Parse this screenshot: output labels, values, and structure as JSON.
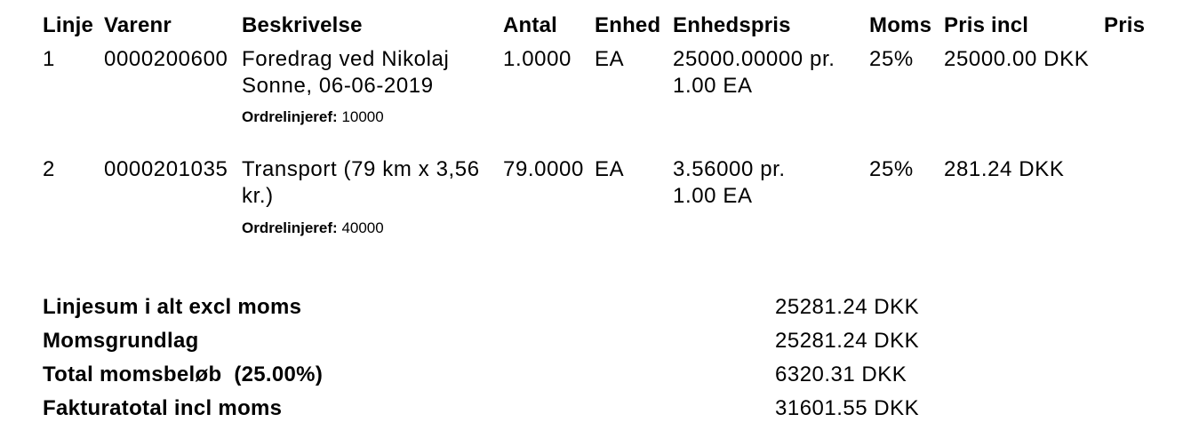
{
  "headers": [
    "Linje",
    "Varenr",
    "Beskrivelse",
    "Antal",
    "Enhed",
    "Enhedspris",
    "Moms",
    "Pris incl",
    "Pris"
  ],
  "lines": [
    {
      "linje": "1",
      "varenr": "0000200600",
      "beskrivelse": "Foredrag ved Nikolaj Sonne, 06-06-2019",
      "ref_label": "Ordrelinjeref:",
      "ref_value": "10000",
      "antal": "1.0000",
      "enhed": "EA",
      "enhedspris": "25000.00000 pr. 1.00 EA",
      "moms": "25%",
      "pris_incl": "25000.00 DKK",
      "pris": ""
    },
    {
      "linje": "2",
      "varenr": "0000201035",
      "beskrivelse": "Transport (79 km x 3,56 kr.)",
      "ref_label": "Ordrelinjeref:",
      "ref_value": "40000",
      "antal": "79.0000",
      "enhed": "EA",
      "enhedspris": "3.56000 pr. 1.00 EA",
      "moms": "25%",
      "pris_incl": "281.24 DKK",
      "pris": ""
    }
  ],
  "summary": [
    {
      "label": "Linjesum i alt excl moms",
      "value": "25281.24 DKK"
    },
    {
      "label": "Momsgrundlag",
      "value": "25281.24 DKK"
    },
    {
      "label": "Total momsbeløb  (25.00%)",
      "value": "6320.31 DKK"
    },
    {
      "label": "Fakturatotal incl moms",
      "value": "31601.55 DKK"
    }
  ]
}
